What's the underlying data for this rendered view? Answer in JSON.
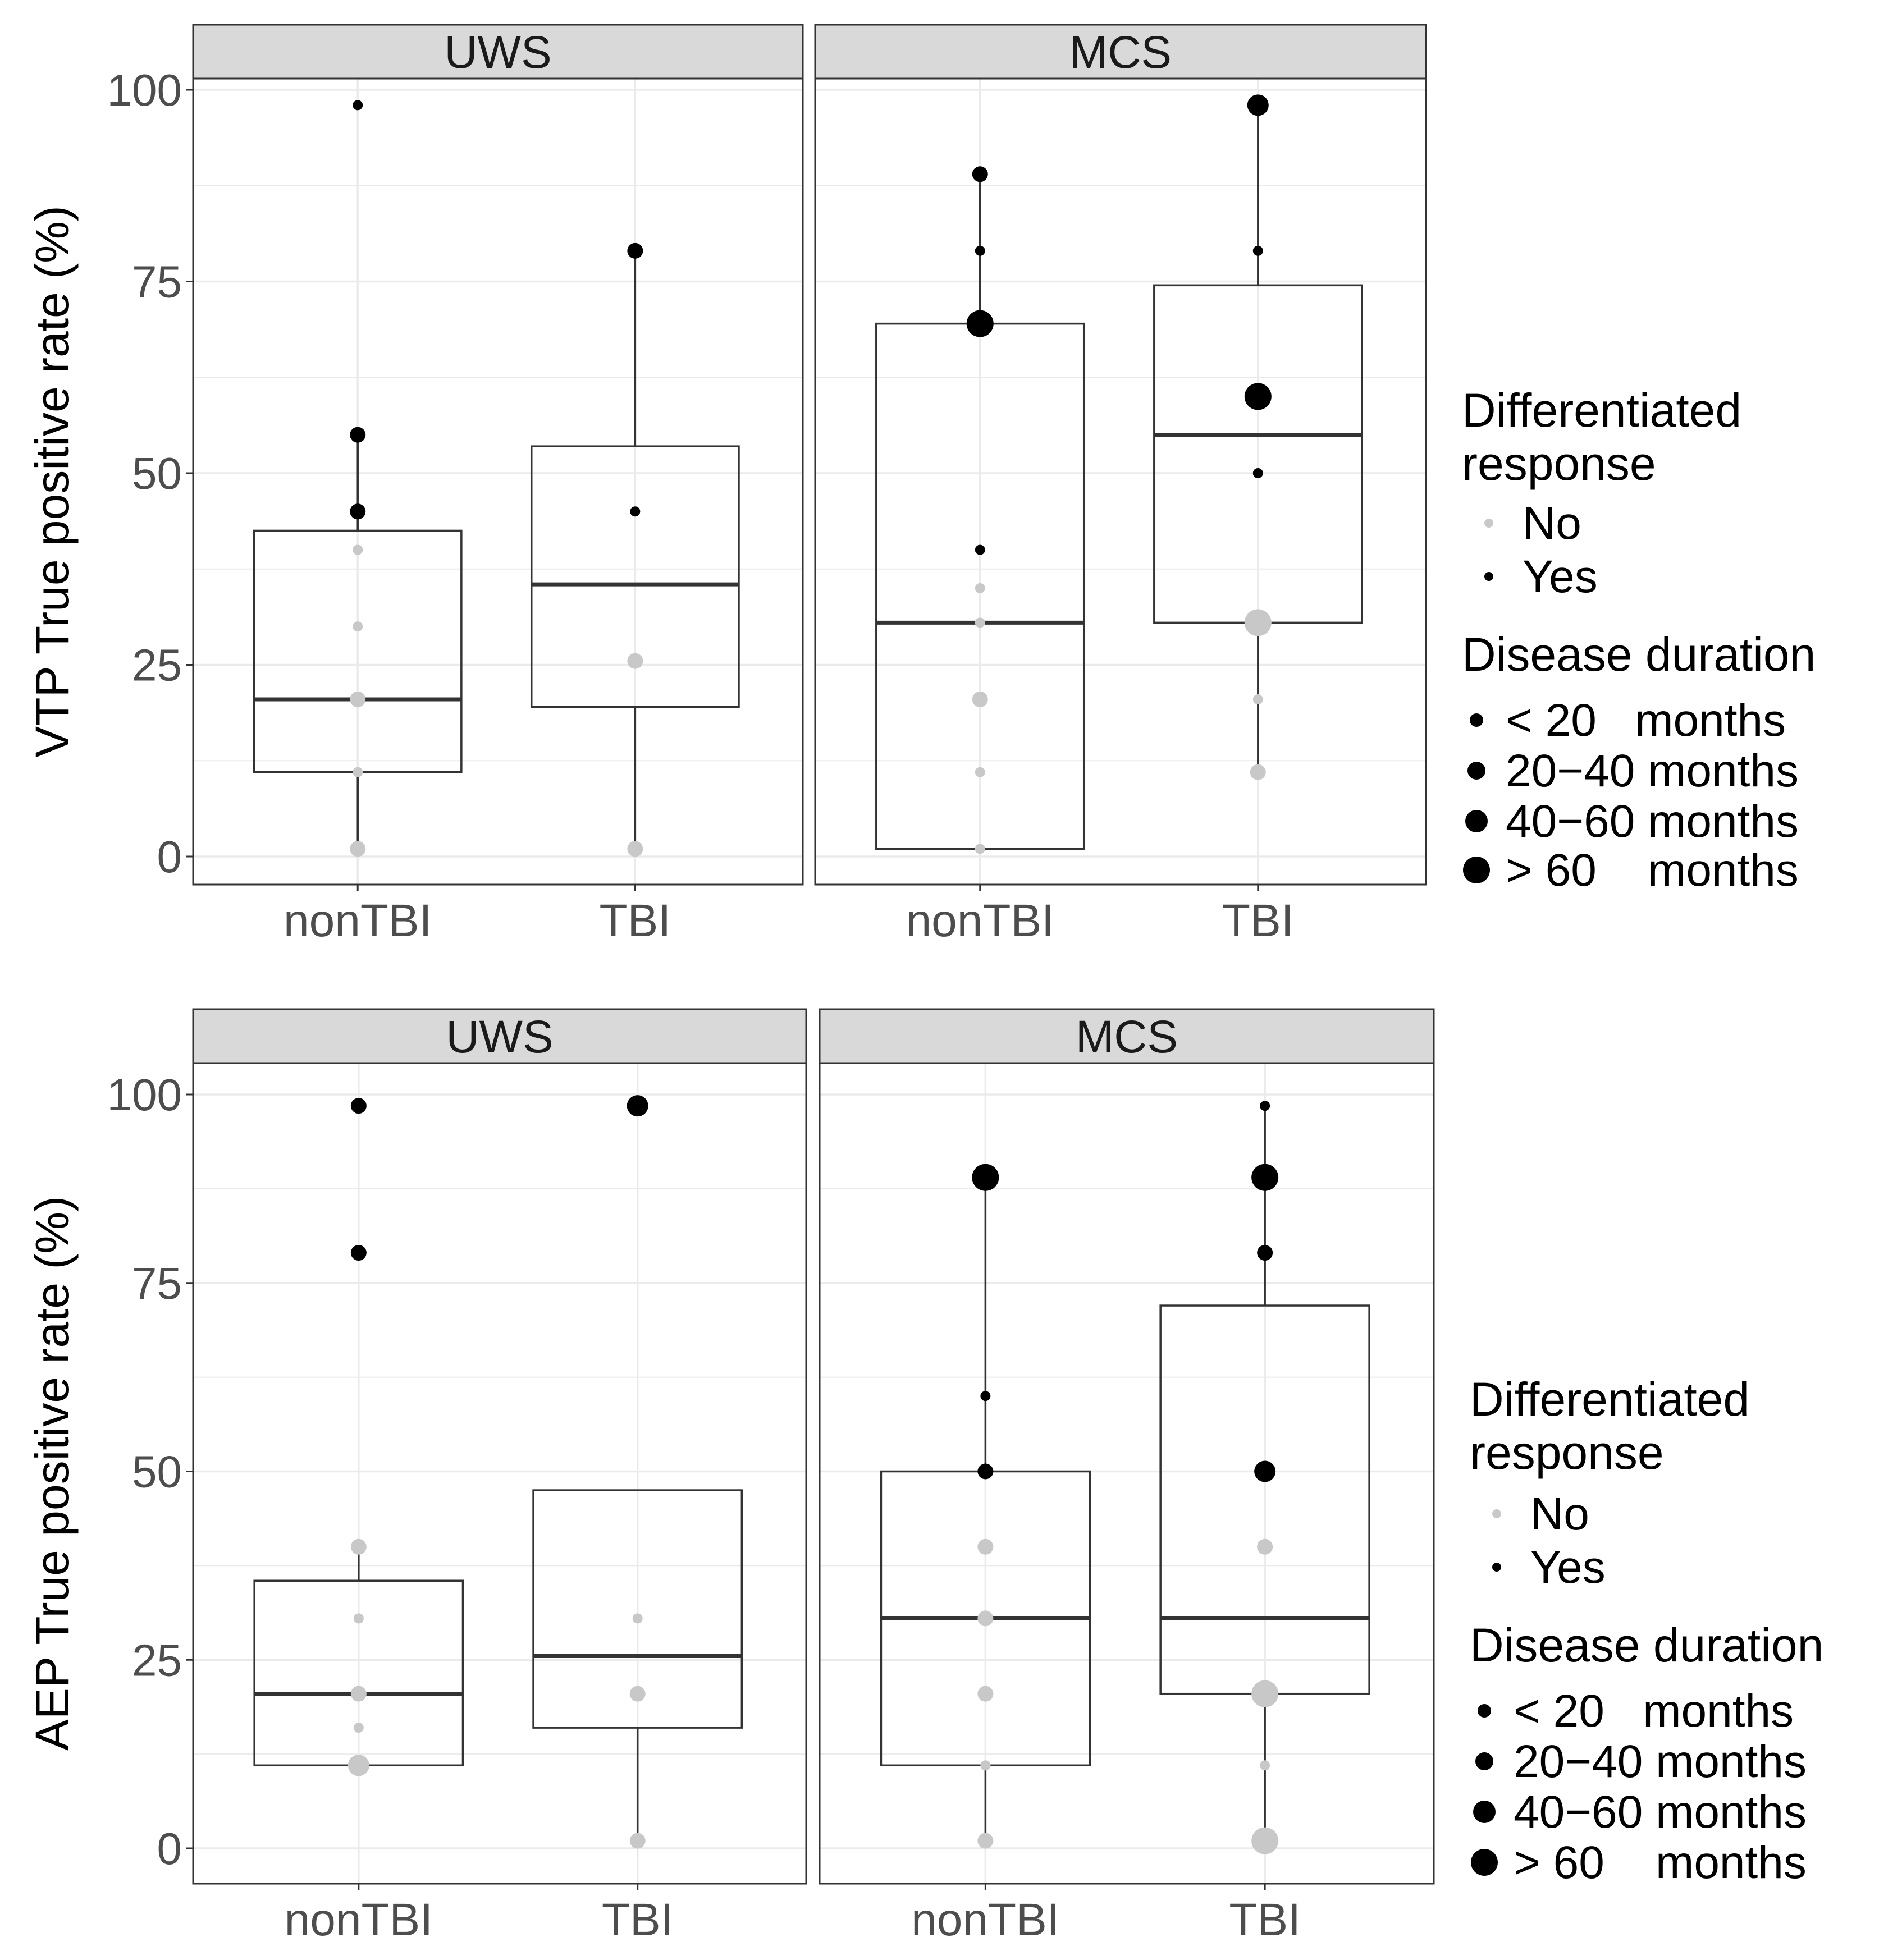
{
  "figure": {
    "description_none": ""
  },
  "chart_data": [
    {
      "type": "box",
      "id": "vtp",
      "ylabel": "VTP True positive rate (%)",
      "ylim": [
        0,
        100
      ],
      "yticks": [
        0,
        25,
        50,
        75,
        100
      ],
      "categories": [
        "nonTBI",
        "TBI"
      ],
      "panels": [
        {
          "strip": "UWS",
          "boxes": [
            {
              "category": "nonTBI",
              "q1": 11,
              "median": 20.5,
              "q3": 42.5,
              "whisker_low": 1,
              "whisker_high": 55
            },
            {
              "category": "TBI",
              "q1": 19.5,
              "median": 35.5,
              "q3": 53.5,
              "whisker_low": 1,
              "whisker_high": 79
            }
          ],
          "points": [
            {
              "category": "nonTBI",
              "value": 98,
              "response": "Yes",
              "duration": "< 20"
            },
            {
              "category": "nonTBI",
              "value": 55,
              "response": "Yes",
              "duration": "20-40"
            },
            {
              "category": "nonTBI",
              "value": 45,
              "response": "Yes",
              "duration": "20-40"
            },
            {
              "category": "nonTBI",
              "value": 40,
              "response": "No",
              "duration": "< 20"
            },
            {
              "category": "nonTBI",
              "value": 30,
              "response": "No",
              "duration": "< 20"
            },
            {
              "category": "nonTBI",
              "value": 20.5,
              "response": "No",
              "duration": "20-40"
            },
            {
              "category": "nonTBI",
              "value": 11,
              "response": "No",
              "duration": "< 20"
            },
            {
              "category": "nonTBI",
              "value": 1,
              "response": "No",
              "duration": "20-40"
            },
            {
              "category": "TBI",
              "value": 79,
              "response": "Yes",
              "duration": "20-40"
            },
            {
              "category": "TBI",
              "value": 45,
              "response": "Yes",
              "duration": "< 20"
            },
            {
              "category": "TBI",
              "value": 25.5,
              "response": "No",
              "duration": "20-40"
            },
            {
              "category": "TBI",
              "value": 1,
              "response": "No",
              "duration": "20-40"
            }
          ]
        },
        {
          "strip": "MCS",
          "boxes": [
            {
              "category": "nonTBI",
              "q1": 1,
              "median": 30.5,
              "q3": 69.5,
              "whisker_low": 1,
              "whisker_high": 89
            },
            {
              "category": "TBI",
              "q1": 30.5,
              "median": 55,
              "q3": 74.5,
              "whisker_low": 11,
              "whisker_high": 98
            }
          ],
          "points": [
            {
              "category": "nonTBI",
              "value": 89,
              "response": "Yes",
              "duration": "20-40"
            },
            {
              "category": "nonTBI",
              "value": 79,
              "response": "Yes",
              "duration": "< 20"
            },
            {
              "category": "nonTBI",
              "value": 69.5,
              "response": "Yes",
              "duration": "> 60"
            },
            {
              "category": "nonTBI",
              "value": 40,
              "response": "Yes",
              "duration": "< 20"
            },
            {
              "category": "nonTBI",
              "value": 35,
              "response": "No",
              "duration": "< 20"
            },
            {
              "category": "nonTBI",
              "value": 30.5,
              "response": "No",
              "duration": "< 20"
            },
            {
              "category": "nonTBI",
              "value": 20.5,
              "response": "No",
              "duration": "20-40"
            },
            {
              "category": "nonTBI",
              "value": 11,
              "response": "No",
              "duration": "< 20"
            },
            {
              "category": "nonTBI",
              "value": 1,
              "response": "No",
              "duration": "< 20"
            },
            {
              "category": "TBI",
              "value": 98,
              "response": "Yes",
              "duration": "40-60"
            },
            {
              "category": "TBI",
              "value": 79,
              "response": "Yes",
              "duration": "< 20"
            },
            {
              "category": "TBI",
              "value": 60,
              "response": "Yes",
              "duration": "> 60"
            },
            {
              "category": "TBI",
              "value": 50,
              "response": "Yes",
              "duration": "< 20"
            },
            {
              "category": "TBI",
              "value": 30.5,
              "response": "No",
              "duration": "> 60"
            },
            {
              "category": "TBI",
              "value": 20.5,
              "response": "No",
              "duration": "< 20"
            },
            {
              "category": "TBI",
              "value": 11,
              "response": "No",
              "duration": "20-40"
            }
          ]
        }
      ]
    },
    {
      "type": "box",
      "id": "aep",
      "ylabel": "AEP True positive rate (%)",
      "ylim": [
        0,
        100
      ],
      "yticks": [
        0,
        25,
        50,
        75,
        100
      ],
      "categories": [
        "nonTBI",
        "TBI"
      ],
      "panels": [
        {
          "strip": "UWS",
          "boxes": [
            {
              "category": "nonTBI",
              "q1": 11,
              "median": 20.5,
              "q3": 35.5,
              "whisker_low": 11,
              "whisker_high": 40
            },
            {
              "category": "TBI",
              "q1": 16,
              "median": 25.5,
              "q3": 47.5,
              "whisker_low": 1,
              "whisker_high": 47.5
            }
          ],
          "points": [
            {
              "category": "nonTBI",
              "value": 98.5,
              "response": "Yes",
              "duration": "20-40"
            },
            {
              "category": "nonTBI",
              "value": 79,
              "response": "Yes",
              "duration": "20-40"
            },
            {
              "category": "nonTBI",
              "value": 40,
              "response": "No",
              "duration": "20-40"
            },
            {
              "category": "nonTBI",
              "value": 30.5,
              "response": "No",
              "duration": "< 20"
            },
            {
              "category": "nonTBI",
              "value": 20.5,
              "response": "No",
              "duration": "20-40"
            },
            {
              "category": "nonTBI",
              "value": 16,
              "response": "No",
              "duration": "< 20"
            },
            {
              "category": "nonTBI",
              "value": 11,
              "response": "No",
              "duration": "40-60"
            },
            {
              "category": "TBI",
              "value": 98.5,
              "response": "Yes",
              "duration": "40-60"
            },
            {
              "category": "TBI",
              "value": 30.5,
              "response": "No",
              "duration": "< 20"
            },
            {
              "category": "TBI",
              "value": 20.5,
              "response": "No",
              "duration": "20-40"
            },
            {
              "category": "TBI",
              "value": 1,
              "response": "No",
              "duration": "20-40"
            }
          ]
        },
        {
          "strip": "MCS",
          "boxes": [
            {
              "category": "nonTBI",
              "q1": 11,
              "median": 30.5,
              "q3": 50,
              "whisker_low": 1,
              "whisker_high": 89
            },
            {
              "category": "TBI",
              "q1": 20.5,
              "median": 30.5,
              "q3": 72,
              "whisker_low": 1,
              "whisker_high": 98.5
            }
          ],
          "points": [
            {
              "category": "nonTBI",
              "value": 89,
              "response": "Yes",
              "duration": "> 60"
            },
            {
              "category": "nonTBI",
              "value": 60,
              "response": "Yes",
              "duration": "< 20"
            },
            {
              "category": "nonTBI",
              "value": 50,
              "response": "Yes",
              "duration": "20-40"
            },
            {
              "category": "nonTBI",
              "value": 40,
              "response": "No",
              "duration": "20-40"
            },
            {
              "category": "nonTBI",
              "value": 30.5,
              "response": "No",
              "duration": "20-40"
            },
            {
              "category": "nonTBI",
              "value": 20.5,
              "response": "No",
              "duration": "20-40"
            },
            {
              "category": "nonTBI",
              "value": 11,
              "response": "No",
              "duration": "< 20"
            },
            {
              "category": "nonTBI",
              "value": 1,
              "response": "No",
              "duration": "20-40"
            },
            {
              "category": "TBI",
              "value": 98.5,
              "response": "Yes",
              "duration": "< 20"
            },
            {
              "category": "TBI",
              "value": 89,
              "response": "Yes",
              "duration": "> 60"
            },
            {
              "category": "TBI",
              "value": 79,
              "response": "Yes",
              "duration": "20-40"
            },
            {
              "category": "TBI",
              "value": 50,
              "response": "Yes",
              "duration": "40-60"
            },
            {
              "category": "TBI",
              "value": 40,
              "response": "No",
              "duration": "20-40"
            },
            {
              "category": "TBI",
              "value": 20.5,
              "response": "No",
              "duration": "> 60"
            },
            {
              "category": "TBI",
              "value": 11,
              "response": "No",
              "duration": "< 20"
            },
            {
              "category": "TBI",
              "value": 1,
              "response": "No",
              "duration": "> 60"
            }
          ]
        }
      ]
    }
  ],
  "legend": {
    "response_title_line1": "Differentiated",
    "response_title_line2": "response",
    "response_items": [
      {
        "key": "No",
        "label": "No"
      },
      {
        "key": "Yes",
        "label": "Yes"
      }
    ],
    "duration_title": "Disease duration",
    "duration_items": [
      {
        "key": "< 20",
        "label": "< 20   months"
      },
      {
        "key": "20-40",
        "label": "20−40 months"
      },
      {
        "key": "40-60",
        "label": "40−60 months"
      },
      {
        "key": "> 60",
        "label": "> 60    months"
      }
    ]
  },
  "colors": {
    "yes": "#000000",
    "no": "#c8c8c8",
    "strip_fill": "#d9d9d9",
    "grid": "#ebebeb",
    "box_line": "#333333",
    "axis_text": "#4d4d4d"
  }
}
